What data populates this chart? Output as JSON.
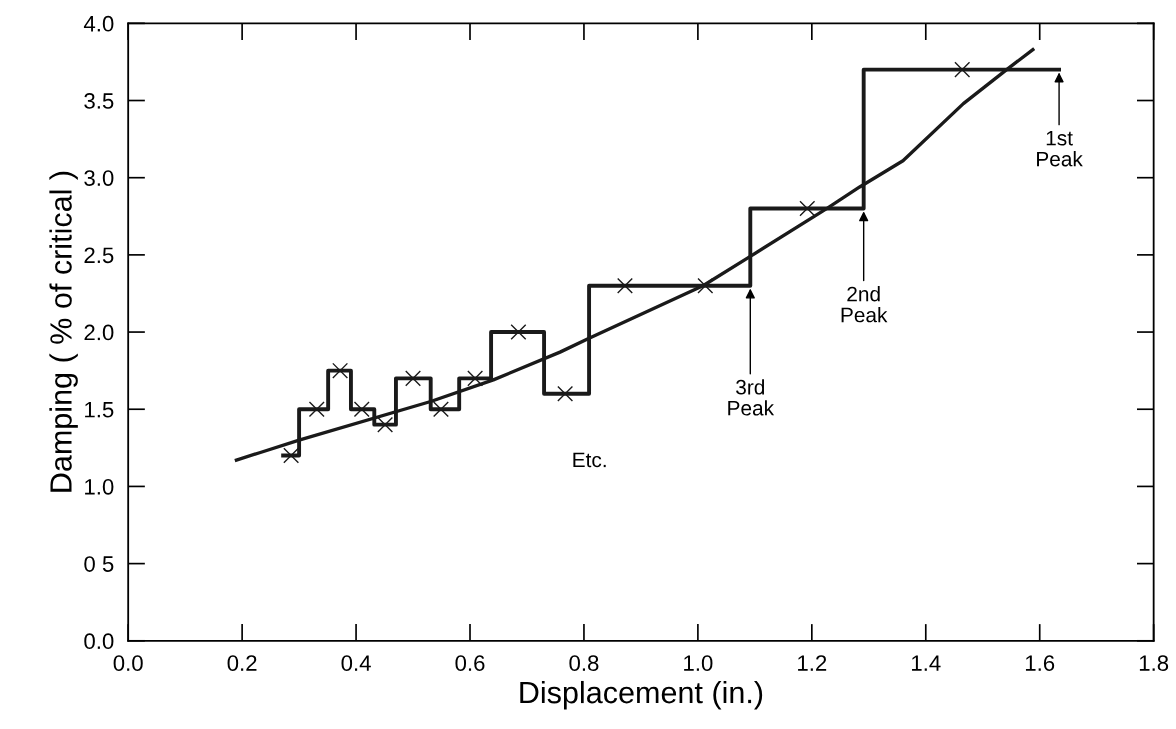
{
  "chart_data": {
    "type": "line",
    "xlabel": "Displacement (in.)",
    "ylabel": "Damping ( % of critical )",
    "xlim": [
      0.0,
      1.8
    ],
    "xticks": [
      {
        "value": 0.0,
        "label": "0.0"
      },
      0.2,
      0.4,
      0.6,
      0.8,
      {
        "value": 1.0,
        "label": "1.0"
      },
      1.2,
      1.4,
      1.6,
      1.8
    ],
    "ylim": [
      0.0,
      4.0
    ],
    "yticks": [
      {
        "value": 0.0,
        "label": "0.0"
      },
      {
        "value": 0.5,
        "label": "0 5"
      },
      {
        "value": 1.0,
        "label": "1.0"
      },
      1.5,
      {
        "value": 2.0,
        "label": "2.0"
      },
      2.5,
      {
        "value": 3.0,
        "label": "3.0"
      },
      3.5,
      {
        "value": 4.0,
        "label": "4.0"
      }
    ],
    "grid": false,
    "legend": false,
    "series": [
      {
        "type": "step",
        "color": "#1a1a1a",
        "x": [
          0.272,
          0.3,
          0.351,
          0.391,
          0.432,
          0.47,
          0.531,
          0.581,
          0.637,
          0.73,
          0.809,
          1.092,
          1.291,
          1.634
        ],
        "values": [
          1.2,
          1.5,
          1.75,
          1.5,
          1.4,
          1.7,
          1.5,
          1.7,
          2.0,
          1.6,
          2.3,
          2.8,
          3.7,
          3.7
        ]
      },
      {
        "type": "scatter",
        "color": "#1a1a1a",
        "marker": "cross",
        "x": [
          0.286,
          0.331,
          0.372,
          0.41,
          0.451,
          0.5,
          0.549,
          0.609,
          0.685,
          0.767,
          0.872,
          1.013,
          1.192,
          1.464
        ],
        "values": [
          1.2,
          1.5,
          1.75,
          1.5,
          1.4,
          1.7,
          1.5,
          1.7,
          2.0,
          1.6,
          2.3,
          2.3,
          2.8,
          3.7
        ]
      },
      {
        "color": "#1a1a1a",
        "x": [
          0.19,
          0.232,
          0.3,
          0.531,
          0.641,
          0.758,
          0.809,
          1.009,
          1.092,
          1.226,
          1.284,
          1.36,
          1.466,
          1.542,
          1.588
        ],
        "values": [
          1.17,
          1.22,
          1.3,
          1.55,
          1.69,
          1.87,
          1.96,
          2.3,
          2.49,
          2.8,
          2.94,
          3.11,
          3.48,
          3.7,
          3.83
        ]
      }
    ],
    "annotations": [
      {
        "text": "1st\nPeak",
        "x": 1.634,
        "y": 3.7
      },
      {
        "text": "2nd\nPeak",
        "x": 1.291,
        "y": 2.8
      },
      {
        "text": "3rd\nPeak",
        "x": 1.092,
        "y": 2.3
      },
      "Etc."
    ]
  }
}
